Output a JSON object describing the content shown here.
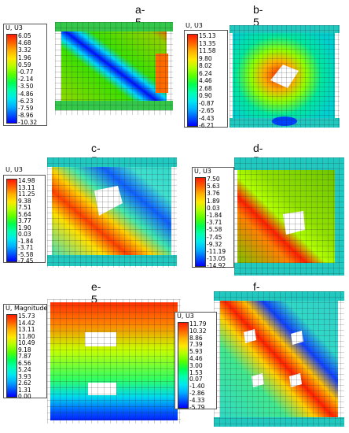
{
  "contour_scale": [
    "#0000ff",
    "#0058ff",
    "#00b0ff",
    "#00e8f0",
    "#00ffb0",
    "#00ff50",
    "#58ff00",
    "#b0ff00",
    "#ffe800",
    "#ffb000",
    "#ff6000",
    "#ff1a00"
  ],
  "panels": [
    {
      "title": "a-5",
      "field": "U, U3",
      "values": [
        "6.05",
        "4.68",
        "3.32",
        "1.96",
        "0.59",
        "-0.77",
        "-2.14",
        "-3.50",
        "-4.86",
        "-6.23",
        "-7.59",
        "-8.96",
        "-10.32"
      ]
    },
    {
      "title": "b-5",
      "field": "U, U3",
      "values": [
        "15.13",
        "13.35",
        "11.58",
        "9.80",
        "8.02",
        "6.24",
        "4.46",
        "2.68",
        "0.90",
        "-0.87",
        "-2.65",
        "-4.43",
        "-6.21"
      ]
    },
    {
      "title": "c-5",
      "field": "U, U3",
      "values": [
        "14.98",
        "13.11",
        "11.25",
        "9.38",
        "7.51",
        "5.64",
        "3.77",
        "1.90",
        "0.03",
        "-1.84",
        "-3.71",
        "-5.58",
        "-7.45"
      ]
    },
    {
      "title": "d-5",
      "field": "U, U3",
      "values": [
        "7.50",
        "5.63",
        "3.76",
        "1.89",
        "0.03",
        "-1.84",
        "-3.71",
        "-5.58",
        "-7.45",
        "-9.32",
        "-11.19",
        "-13.05",
        "-14.92"
      ]
    },
    {
      "title": "e-5",
      "field": "U, Magnitude",
      "values": [
        "15.73",
        "14.42",
        "13.11",
        "11.80",
        "10.49",
        "9.18",
        "7.87",
        "6.56",
        "5.24",
        "3.93",
        "2.62",
        "1.31",
        "0.00"
      ]
    },
    {
      "title": "f-5",
      "field": "U, U3",
      "values": [
        "11.79",
        "10.32",
        "8.86",
        "7.39",
        "5.93",
        "4.46",
        "3.00",
        "1.53",
        "0.07",
        "-1.40",
        "-2.86",
        "-4.33",
        "-5.79"
      ]
    }
  ]
}
